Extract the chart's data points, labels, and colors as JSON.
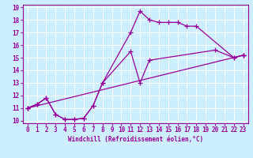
{
  "xlabel": "Windchill (Refroidissement éolien,°C)",
  "background_color": "#cceeff",
  "grid_color": "#ffffff",
  "line_color": "#990099",
  "xlim": [
    -0.5,
    23.5
  ],
  "ylim": [
    9.8,
    19.2
  ],
  "xticks": [
    0,
    1,
    2,
    3,
    4,
    5,
    6,
    7,
    8,
    9,
    10,
    11,
    12,
    13,
    14,
    15,
    16,
    17,
    18,
    19,
    20,
    21,
    22,
    23
  ],
  "yticks": [
    10,
    11,
    12,
    13,
    14,
    15,
    16,
    17,
    18,
    19
  ],
  "series1_x": [
    0,
    1,
    2,
    3,
    4,
    5,
    6,
    7,
    8,
    11,
    12,
    13,
    14,
    15,
    16,
    17,
    18,
    22,
    23
  ],
  "series1_y": [
    11.0,
    11.3,
    11.8,
    10.5,
    10.1,
    10.1,
    10.2,
    11.2,
    13.0,
    17.0,
    18.7,
    18.0,
    17.8,
    17.8,
    17.8,
    17.5,
    17.5,
    15.0,
    15.2
  ],
  "series2_x": [
    0,
    1,
    2,
    3,
    4,
    5,
    6,
    7,
    8,
    11,
    12,
    13,
    20,
    22,
    23
  ],
  "series2_y": [
    11.0,
    11.3,
    11.8,
    10.5,
    10.1,
    10.1,
    10.2,
    11.2,
    13.0,
    15.5,
    13.0,
    14.8,
    15.6,
    15.0,
    15.2
  ],
  "series3_x": [
    0,
    23
  ],
  "series3_y": [
    11.0,
    15.2
  ],
  "tick_fontsize": 5.5,
  "xlabel_fontsize": 5.5
}
